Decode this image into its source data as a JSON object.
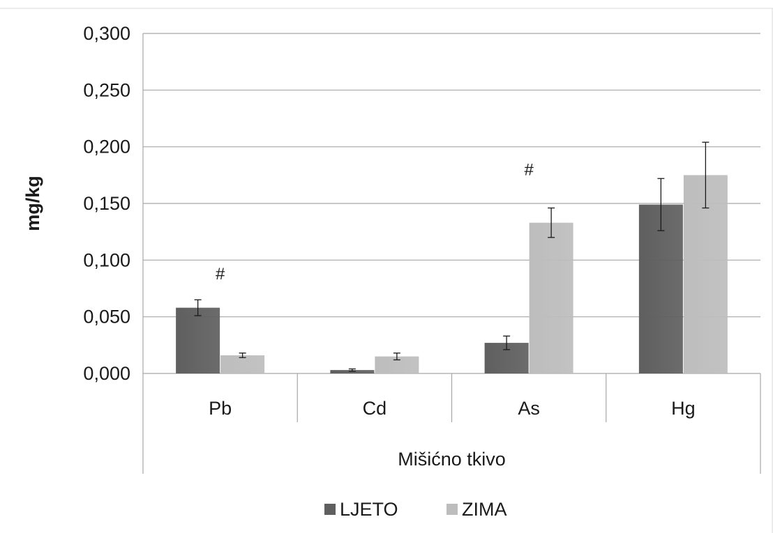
{
  "chart_data": {
    "type": "bar",
    "categories": [
      "Pb",
      "Cd",
      "As",
      "Hg"
    ],
    "group_label": "Mišićno tkivo",
    "ylabel": "mg/kg",
    "ylim": [
      0,
      0.3
    ],
    "yticks": [
      "0,000",
      "0,050",
      "0,100",
      "0,150",
      "0,200",
      "0,250",
      "0,300"
    ],
    "grid": true,
    "legend_position": "bottom",
    "series": [
      {
        "name": "LJETO",
        "color": "#5f5f5f",
        "values": [
          0.058,
          0.003,
          0.027,
          0.149
        ],
        "errors": [
          0.007,
          0.001,
          0.006,
          0.023
        ]
      },
      {
        "name": "ZIMA",
        "color": "#bdbdbd",
        "values": [
          0.016,
          0.015,
          0.133,
          0.175
        ],
        "errors": [
          0.002,
          0.003,
          0.013,
          0.029
        ]
      }
    ],
    "annotations": [
      {
        "text": "#",
        "category": "Pb",
        "value": 0.083
      },
      {
        "text": "#",
        "category": "As",
        "value": 0.175
      }
    ]
  }
}
